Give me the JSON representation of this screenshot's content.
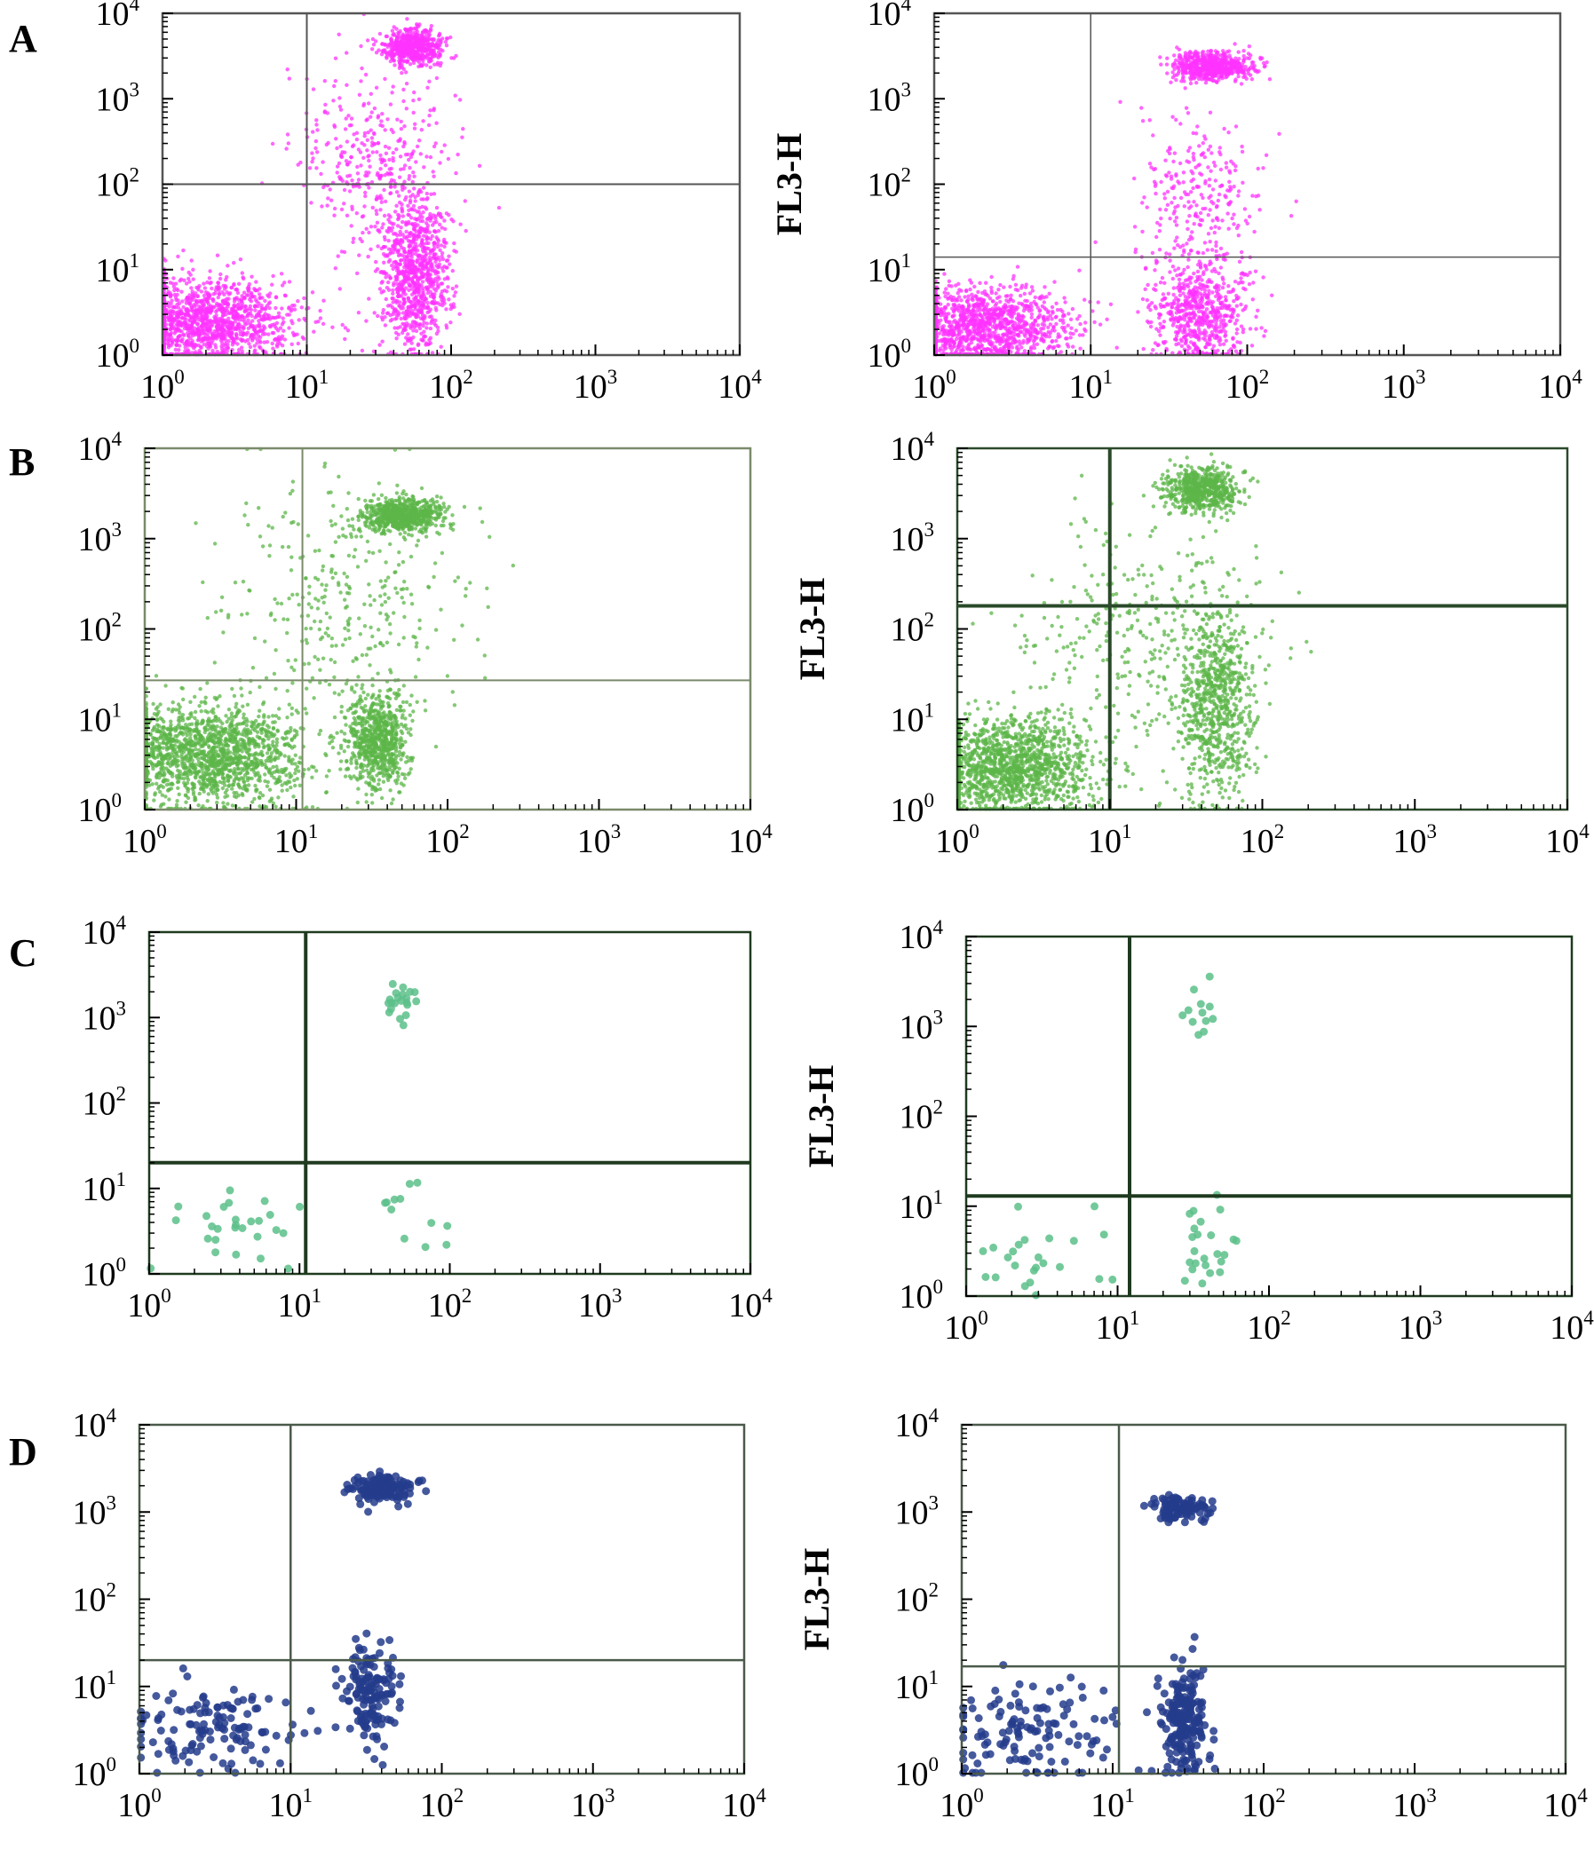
{
  "figure": {
    "panel_labels": [
      "A",
      "B",
      "C",
      "D"
    ]
  },
  "chart_data": [
    {
      "type": "scatter",
      "panel": "A",
      "position": "left",
      "xscale": "log",
      "yscale": "log",
      "xlim": [
        1,
        10000
      ],
      "ylim": [
        1,
        10000
      ],
      "xticks": [
        "10^0",
        "10^1",
        "10^2",
        "10^3",
        "10^4"
      ],
      "yticks": [
        "10^0",
        "10^1",
        "10^2",
        "10^3",
        "10^4"
      ],
      "ylabel": "",
      "color": "#ff33ff",
      "gate": {
        "x": 10,
        "y": 100
      },
      "border": "#555555",
      "gate_width": 2,
      "clusters": [
        {
          "x": 2,
          "y": 2.5,
          "spread_x": 0.3,
          "spread_y": 0.25,
          "share": 0.42
        },
        {
          "x": 55,
          "y": 4000,
          "spread_x": 0.1,
          "spread_y": 0.1,
          "share": 0.18
        },
        {
          "x": 55,
          "y": 8,
          "spread_x": 0.12,
          "spread_y": 0.45,
          "share": 0.28
        },
        {
          "x": 30,
          "y": 200,
          "spread_x": 0.25,
          "spread_y": 0.6,
          "share": 0.12
        }
      ],
      "point_count": 3200
    },
    {
      "type": "scatter",
      "panel": "A",
      "position": "right",
      "xscale": "log",
      "yscale": "log",
      "xlim": [
        1,
        10000
      ],
      "ylim": [
        1,
        10000
      ],
      "xticks": [
        "10^0",
        "10^1",
        "10^2",
        "10^3",
        "10^4"
      ],
      "yticks": [
        "10^0",
        "10^1",
        "10^2",
        "10^3",
        "10^4"
      ],
      "ylabel": "FL3-H",
      "color": "#ff33ff",
      "gate": {
        "x": 10,
        "y": 14
      },
      "border": "#555555",
      "gate_width": 1.5,
      "clusters": [
        {
          "x": 2,
          "y": 2.2,
          "spread_x": 0.28,
          "spread_y": 0.22,
          "share": 0.45
        },
        {
          "x": 60,
          "y": 2400,
          "spread_x": 0.12,
          "spread_y": 0.08,
          "share": 0.22
        },
        {
          "x": 50,
          "y": 3,
          "spread_x": 0.15,
          "spread_y": 0.3,
          "share": 0.23
        },
        {
          "x": 50,
          "y": 60,
          "spread_x": 0.2,
          "spread_y": 0.5,
          "share": 0.1
        }
      ],
      "point_count": 2800
    },
    {
      "type": "scatter",
      "panel": "B",
      "position": "left",
      "xscale": "log",
      "yscale": "log",
      "xlim": [
        1,
        10000
      ],
      "ylim": [
        1,
        10000
      ],
      "xticks": [
        "10^0",
        "10^1",
        "10^2",
        "10^3",
        "10^4"
      ],
      "yticks": [
        "10^0",
        "10^1",
        "10^2",
        "10^3",
        "10^4"
      ],
      "ylabel": "",
      "color": "#5cb548",
      "gate": {
        "x": 11,
        "y": 27
      },
      "border": "#7a8a6a",
      "gate_width": 2,
      "clusters": [
        {
          "x": 2.5,
          "y": 4,
          "spread_x": 0.32,
          "spread_y": 0.28,
          "share": 0.48
        },
        {
          "x": 50,
          "y": 1800,
          "spread_x": 0.13,
          "spread_y": 0.09,
          "share": 0.2
        },
        {
          "x": 35,
          "y": 6,
          "spread_x": 0.1,
          "spread_y": 0.28,
          "share": 0.22
        },
        {
          "x": 20,
          "y": 200,
          "spread_x": 0.4,
          "spread_y": 0.7,
          "share": 0.1
        }
      ],
      "point_count": 3400
    },
    {
      "type": "scatter",
      "panel": "B",
      "position": "right",
      "xscale": "log",
      "yscale": "log",
      "xlim": [
        1,
        10000
      ],
      "ylim": [
        1,
        10000
      ],
      "xticks": [
        "10^0",
        "10^1",
        "10^2",
        "10^3",
        "10^4"
      ],
      "yticks": [
        "10^0",
        "10^1",
        "10^2",
        "10^3",
        "10^4"
      ],
      "ylabel": "FL3-H",
      "color": "#5cb548",
      "gate": {
        "x": 10,
        "y": 180
      },
      "border": "#2a4a2a",
      "gate_width": 4,
      "clusters": [
        {
          "x": 2.2,
          "y": 3,
          "spread_x": 0.28,
          "spread_y": 0.26,
          "share": 0.46
        },
        {
          "x": 40,
          "y": 3500,
          "spread_x": 0.12,
          "spread_y": 0.12,
          "share": 0.2
        },
        {
          "x": 50,
          "y": 15,
          "spread_x": 0.12,
          "spread_y": 0.55,
          "share": 0.24
        },
        {
          "x": 15,
          "y": 80,
          "spread_x": 0.4,
          "spread_y": 0.6,
          "share": 0.1
        }
      ],
      "point_count": 3200
    },
    {
      "type": "scatter",
      "panel": "C",
      "position": "left",
      "xscale": "log",
      "yscale": "log",
      "xlim": [
        1,
        10000
      ],
      "ylim": [
        1,
        10000
      ],
      "xticks": [
        "10^0",
        "10^1",
        "10^2",
        "10^3",
        "10^4"
      ],
      "yticks": [
        "10^0",
        "10^1",
        "10^2",
        "10^3",
        "10^4"
      ],
      "ylabel": "",
      "color": "#5cc089",
      "gate": {
        "x": 11,
        "y": 20
      },
      "border": "#1f3a1f",
      "gate_width": 4,
      "clusters": [
        {
          "x": 3,
          "y": 3.5,
          "spread_x": 0.25,
          "spread_y": 0.25,
          "share": 0.45
        },
        {
          "x": 45,
          "y": 1500,
          "spread_x": 0.09,
          "spread_y": 0.1,
          "share": 0.35
        },
        {
          "x": 55,
          "y": 5,
          "spread_x": 0.15,
          "spread_y": 0.25,
          "share": 0.2
        }
      ],
      "point_count": 60
    },
    {
      "type": "scatter",
      "panel": "C",
      "position": "right",
      "xscale": "log",
      "yscale": "log",
      "xlim": [
        1,
        10000
      ],
      "ylim": [
        1,
        10000
      ],
      "xticks": [
        "10^0",
        "10^1",
        "10^2",
        "10^3",
        "10^4"
      ],
      "yticks": [
        "10^0",
        "10^1",
        "10^2",
        "10^3",
        "10^4"
      ],
      "ylabel": "FL3-H",
      "color": "#5cc089",
      "gate": {
        "x": 12,
        "y": 13
      },
      "border": "#1f3a1f",
      "gate_width": 4,
      "clusters": [
        {
          "x": 3,
          "y": 3,
          "spread_x": 0.28,
          "spread_y": 0.25,
          "share": 0.4
        },
        {
          "x": 35,
          "y": 1500,
          "spread_x": 0.08,
          "spread_y": 0.15,
          "share": 0.2
        },
        {
          "x": 40,
          "y": 4,
          "spread_x": 0.1,
          "spread_y": 0.3,
          "share": 0.4
        }
      ],
      "point_count": 60
    },
    {
      "type": "scatter",
      "panel": "D",
      "position": "left",
      "xscale": "log",
      "yscale": "log",
      "xlim": [
        1,
        10000
      ],
      "ylim": [
        1,
        10000
      ],
      "xticks": [
        "10^0",
        "10^1",
        "10^2",
        "10^3",
        "10^4"
      ],
      "yticks": [
        "10^0",
        "10^1",
        "10^2",
        "10^3",
        "10^4"
      ],
      "ylabel": "",
      "color": "#243c8c",
      "gate": {
        "x": 10,
        "y": 20
      },
      "border": "#4a5a4a",
      "gate_width": 2.5,
      "clusters": [
        {
          "x": 3,
          "y": 3,
          "spread_x": 0.28,
          "spread_y": 0.28,
          "share": 0.3
        },
        {
          "x": 40,
          "y": 1900,
          "spread_x": 0.1,
          "spread_y": 0.08,
          "share": 0.35
        },
        {
          "x": 32,
          "y": 8,
          "spread_x": 0.1,
          "spread_y": 0.25,
          "share": 0.35
        }
      ],
      "point_count": 420
    },
    {
      "type": "scatter",
      "panel": "D",
      "position": "right",
      "xscale": "log",
      "yscale": "log",
      "xlim": [
        1,
        10000
      ],
      "ylim": [
        1,
        10000
      ],
      "xticks": [
        "10^0",
        "10^1",
        "10^2",
        "10^3",
        "10^4"
      ],
      "yticks": [
        "10^0",
        "10^1",
        "10^2",
        "10^3",
        "10^4"
      ],
      "ylabel": "FL3-H",
      "color": "#243c8c",
      "gate": {
        "x": 11,
        "y": 17
      },
      "border": "#4a5a4a",
      "gate_width": 2.5,
      "clusters": [
        {
          "x": 3,
          "y": 3,
          "spread_x": 0.3,
          "spread_y": 0.28,
          "share": 0.3
        },
        {
          "x": 28,
          "y": 1100,
          "spread_x": 0.1,
          "spread_y": 0.08,
          "share": 0.25
        },
        {
          "x": 30,
          "y": 4,
          "spread_x": 0.08,
          "spread_y": 0.3,
          "share": 0.45
        }
      ],
      "point_count": 420
    }
  ]
}
